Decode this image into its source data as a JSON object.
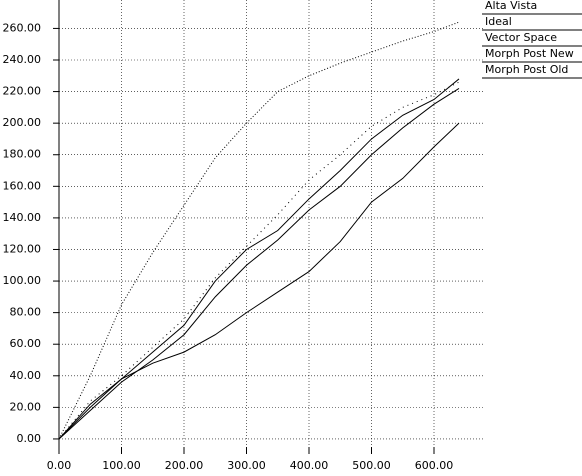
{
  "chart_data": {
    "type": "line",
    "x": [
      0,
      50,
      100,
      150,
      200,
      250,
      300,
      350,
      400,
      450,
      500,
      550,
      600,
      640
    ],
    "series": [
      {
        "name": "Alta Vista",
        "color": "#000000",
        "dash": "1,4",
        "values": [
          0,
          24,
          40,
          58,
          76,
          102,
          122,
          142,
          164,
          180,
          198,
          210,
          218,
          226
        ]
      },
      {
        "name": "Ideal",
        "color": "#000000",
        "dash": "1,2",
        "values": [
          0,
          40,
          85,
          118,
          148,
          178,
          200,
          220,
          230,
          238,
          245,
          252,
          258,
          264
        ]
      },
      {
        "name": "Vector Space",
        "color": "#000000",
        "dash": "none",
        "values": [
          0,
          20,
          38,
          55,
          72,
          100,
          120,
          132,
          152,
          170,
          190,
          205,
          215,
          228
        ]
      },
      {
        "name": "Morph Post New",
        "color": "#000000",
        "dash": "none",
        "values": [
          0,
          18,
          36,
          50,
          66,
          90,
          110,
          126,
          145,
          160,
          180,
          197,
          212,
          222
        ]
      },
      {
        "name": "Morph Post Old",
        "color": "#000000",
        "dash": "none",
        "values": [
          0,
          22,
          38,
          48,
          55,
          66,
          80,
          93,
          106,
          125,
          150,
          165,
          185,
          200
        ]
      }
    ],
    "xlim": [
      0,
      680
    ],
    "ylim": [
      -7,
      278
    ],
    "xticks": [
      {
        "value": 0,
        "label": "0.00"
      },
      {
        "value": 100,
        "label": "100.00"
      },
      {
        "value": 200,
        "label": "200.00"
      },
      {
        "value": 300,
        "label": "300.00"
      },
      {
        "value": 400,
        "label": "400.00"
      },
      {
        "value": 500,
        "label": "500.00"
      },
      {
        "value": 600,
        "label": "600.00"
      }
    ],
    "yticks": [
      {
        "value": 0,
        "label": "0.00"
      },
      {
        "value": 20,
        "label": "20.00"
      },
      {
        "value": 40,
        "label": "40.00"
      },
      {
        "value": 60,
        "label": "60.00"
      },
      {
        "value": 80,
        "label": "80.00"
      },
      {
        "value": 100,
        "label": "100.00"
      },
      {
        "value": 120,
        "label": "120.00"
      },
      {
        "value": 140,
        "label": "140.00"
      },
      {
        "value": 160,
        "label": "160.00"
      },
      {
        "value": 180,
        "label": "180.00"
      },
      {
        "value": 200,
        "label": "200.00"
      },
      {
        "value": 220,
        "label": "220.00"
      },
      {
        "value": 240,
        "label": "240.00"
      },
      {
        "value": 260,
        "label": "260.00"
      }
    ],
    "grid": true
  }
}
